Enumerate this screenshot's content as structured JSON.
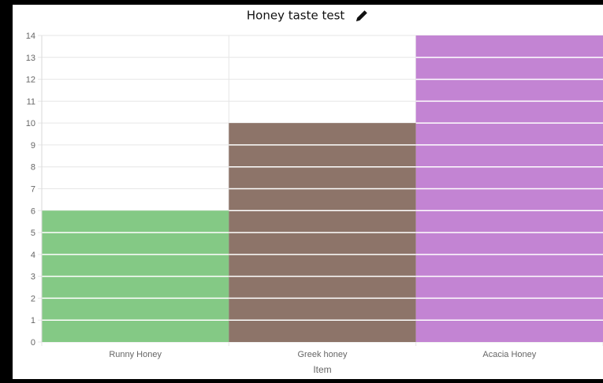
{
  "chart_data": {
    "type": "bar",
    "title": "Honey taste test",
    "xlabel": "Item",
    "ylabel": "",
    "categories": [
      "Runny Honey",
      "Greek honey",
      "Acacia Honey"
    ],
    "values": [
      6,
      10,
      14
    ],
    "colors": [
      "#84c985",
      "#8d7469",
      "#c384d3"
    ],
    "ylim": [
      0,
      14
    ],
    "yticks": [
      0,
      1,
      2,
      3,
      4,
      5,
      6,
      7,
      8,
      9,
      10,
      11,
      12,
      13,
      14
    ],
    "grid": true,
    "legend": "none"
  },
  "icons": {
    "edit": "pencil-icon"
  }
}
